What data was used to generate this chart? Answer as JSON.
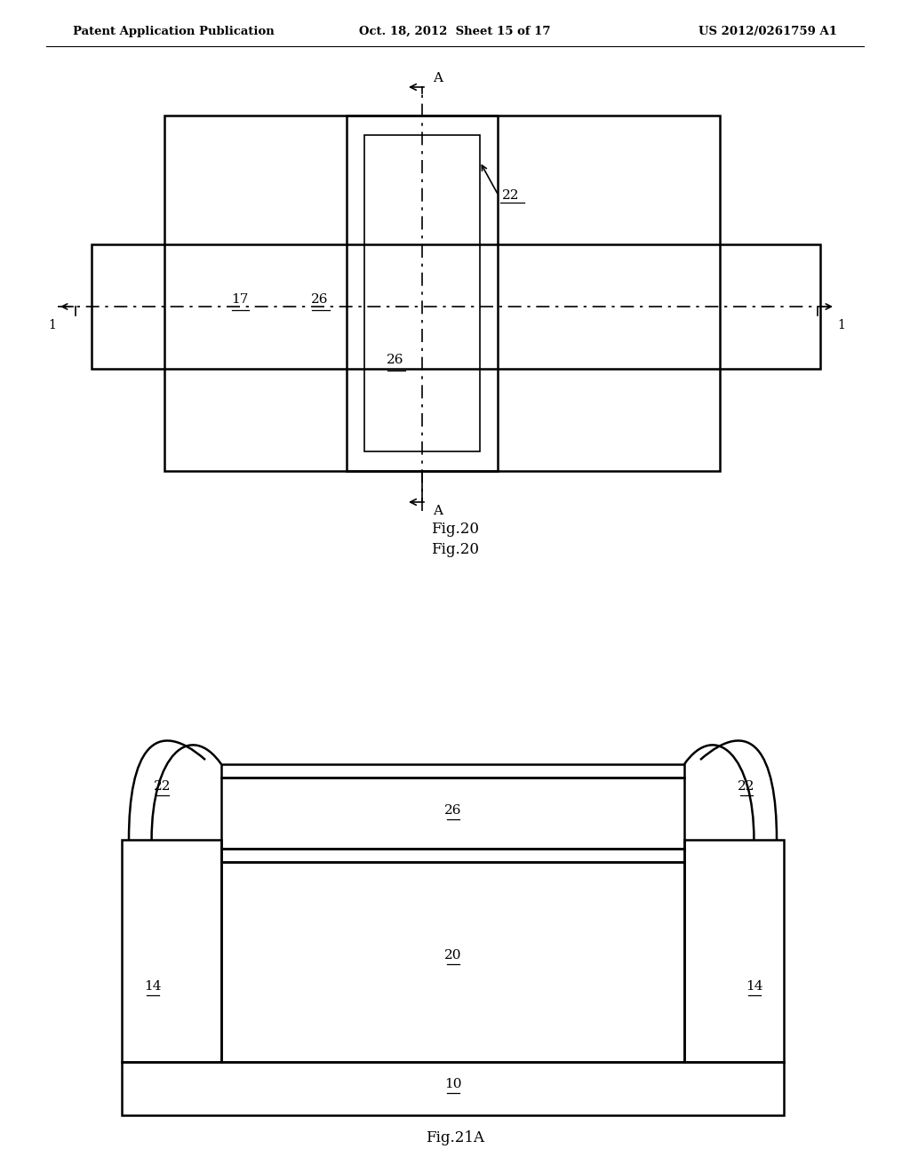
{
  "bg_color": "#ffffff",
  "header_left": "Patent Application Publication",
  "header_mid": "Oct. 18, 2012  Sheet 15 of 17",
  "header_right": "US 2012/0261759 A1",
  "fig20_caption": "Fig.20",
  "fig21a_caption": "Fig.21A"
}
